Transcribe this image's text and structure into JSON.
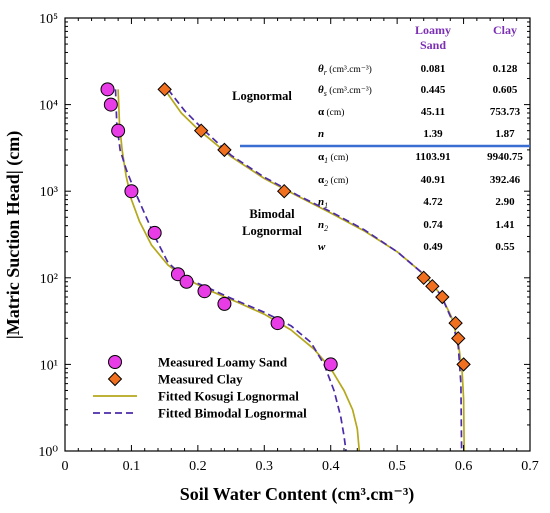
{
  "chart_data": {
    "type": "scatter",
    "xlabel": "Soil Water Content (cm³.cm⁻³)",
    "ylabel": "|Matric Suction Head| (cm)",
    "xlim": [
      0,
      0.7
    ],
    "ylim": [
      1,
      100000
    ],
    "yscale": "log",
    "x_ticks": [
      "0",
      "0.1",
      "0.2",
      "0.3",
      "0.4",
      "0.5",
      "0.6",
      "0.7"
    ],
    "y_ticks": [
      "10⁰",
      "10¹",
      "10²",
      "10³",
      "10⁴",
      "10⁵"
    ],
    "grid": false,
    "legend": {
      "placement": "bottom-left",
      "entries": [
        "Measured Loamy Sand",
        "Measured Clay",
        "Fitted Kosugi Lognormal",
        "Fitted Bimodal Lognormal"
      ]
    },
    "series": [
      {
        "name": "Measured Loamy Sand",
        "kind": "scatter",
        "color": "#e83ce6",
        "points": [
          [
            0.064,
            15000
          ],
          [
            0.069,
            10000
          ],
          [
            0.08,
            5000
          ],
          [
            0.1,
            1000
          ],
          [
            0.135,
            330
          ],
          [
            0.17,
            110
          ],
          [
            0.183,
            90
          ],
          [
            0.21,
            70
          ],
          [
            0.24,
            50
          ],
          [
            0.32,
            30
          ],
          [
            0.4,
            10
          ]
        ]
      },
      {
        "name": "Measured Clay",
        "kind": "scatter",
        "color": "#f07020",
        "points": [
          [
            0.15,
            15000
          ],
          [
            0.205,
            5000
          ],
          [
            0.24,
            3000
          ],
          [
            0.33,
            1000
          ],
          [
            0.54,
            100
          ],
          [
            0.553,
            80
          ],
          [
            0.568,
            60
          ],
          [
            0.588,
            30
          ],
          [
            0.592,
            20
          ],
          [
            0.6,
            10
          ]
        ]
      },
      {
        "name": "Fitted Kosugi Lognormal",
        "kind": "line",
        "color": "#b5a81c",
        "curves": [
          [
            [
              0.08,
              15000
            ],
            [
              0.082,
              6000
            ],
            [
              0.086,
              3000
            ],
            [
              0.092,
              1500
            ],
            [
              0.1,
              800
            ],
            [
              0.112,
              450
            ],
            [
              0.13,
              240
            ],
            [
              0.155,
              140
            ],
            [
              0.185,
              95
            ],
            [
              0.22,
              70
            ],
            [
              0.26,
              52
            ],
            [
              0.3,
              38
            ],
            [
              0.34,
              25
            ],
            [
              0.375,
              15
            ],
            [
              0.4,
              9
            ],
            [
              0.42,
              5
            ],
            [
              0.433,
              3
            ],
            [
              0.44,
              1.8
            ],
            [
              0.443,
              1
            ]
          ],
          [
            [
              0.15,
              15000
            ],
            [
              0.175,
              8000
            ],
            [
              0.2,
              5200
            ],
            [
              0.25,
              2500
            ],
            [
              0.3,
              1400
            ],
            [
              0.35,
              880
            ],
            [
              0.4,
              560
            ],
            [
              0.45,
              350
            ],
            [
              0.5,
              200
            ],
            [
              0.54,
              110
            ],
            [
              0.565,
              65
            ],
            [
              0.582,
              35
            ],
            [
              0.592,
              18
            ],
            [
              0.598,
              8
            ],
            [
              0.6,
              4
            ],
            [
              0.601,
              1
            ]
          ]
        ]
      },
      {
        "name": "Fitted Bimodal Lognormal",
        "kind": "line",
        "dashed": true,
        "color": "#4b2ba8",
        "curves": [
          [
            [
              0.076,
              15000
            ],
            [
              0.078,
              6000
            ],
            [
              0.083,
              3000
            ],
            [
              0.092,
              1800
            ],
            [
              0.105,
              1000
            ],
            [
              0.12,
              550
            ],
            [
              0.135,
              300
            ],
            [
              0.155,
              150
            ],
            [
              0.18,
              100
            ],
            [
              0.21,
              80
            ],
            [
              0.25,
              58
            ],
            [
              0.3,
              40
            ],
            [
              0.34,
              28
            ],
            [
              0.37,
              18
            ],
            [
              0.39,
              10
            ],
            [
              0.405,
              5
            ],
            [
              0.415,
              2.5
            ],
            [
              0.42,
              1.5
            ],
            [
              0.423,
              1
            ]
          ],
          [
            [
              0.155,
              15000
            ],
            [
              0.18,
              8500
            ],
            [
              0.21,
              5000
            ],
            [
              0.25,
              2600
            ],
            [
              0.3,
              1450
            ],
            [
              0.35,
              900
            ],
            [
              0.4,
              580
            ],
            [
              0.45,
              360
            ],
            [
              0.5,
              200
            ],
            [
              0.54,
              110
            ],
            [
              0.566,
              63
            ],
            [
              0.583,
              32
            ],
            [
              0.592,
              16
            ],
            [
              0.596,
              6
            ],
            [
              0.597,
              1
            ]
          ]
        ]
      }
    ],
    "annotation_table": {
      "columns": [
        "Loamy Sand",
        "Clay"
      ],
      "header_color": "#7b2fb5",
      "separator_color": "#3a6fd1",
      "groups": [
        {
          "label": "Lognormal",
          "rows": [
            {
              "param": "θ",
              "sub": "r",
              "unit": " (cm³.cm⁻³)",
              "v1": "0.081",
              "v2": "0.128"
            },
            {
              "param": "θ",
              "sub": "s",
              "unit": " (cm³.cm⁻³)",
              "v1": "0.445",
              "v2": "0.605"
            },
            {
              "param": "α",
              "sub": "",
              "unit": " (cm)",
              "v1": "45.11",
              "v2": "753.73"
            },
            {
              "param": "n",
              "sub": "",
              "unit": "",
              "v1": "1.39",
              "v2": "1.87"
            }
          ]
        },
        {
          "label": "Bimodal Lognormal",
          "rows": [
            {
              "param": "α",
              "sub": "1",
              "unit": " (cm)",
              "v1": "1103.91",
              "v2": "9940.75"
            },
            {
              "param": "α",
              "sub": "2",
              "unit": " (cm)",
              "v1": "40.91",
              "v2": "392.46"
            },
            {
              "param": "n",
              "sub": "1",
              "unit": "",
              "v1": "4.72",
              "v2": "2.90"
            },
            {
              "param": "n",
              "sub": "2",
              "unit": "",
              "v1": "0.74",
              "v2": "1.41"
            },
            {
              "param": "w",
              "sub": "",
              "unit": "",
              "v1": "0.49",
              "v2": "0.55"
            }
          ]
        }
      ]
    }
  }
}
